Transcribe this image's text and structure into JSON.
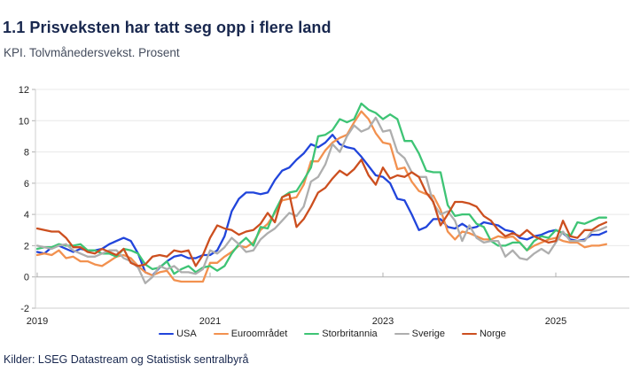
{
  "header": {
    "title": "1.1 Prisveksten har tatt seg opp i flere land",
    "subtitle": "KPI. Tolvmånedersvekst. Prosent"
  },
  "footer": {
    "sources": "Kilder: LSEG Datastream og Statistisk sentralbyrå"
  },
  "colors": {
    "title_text": "#18274e",
    "axis_text": "#1f1f1f",
    "gridline": "#e8e8e8",
    "zero_axis": "#b0b0b0",
    "frame": "#cfcfcf"
  },
  "chart_data": {
    "type": "line",
    "title": "1.1 Prisveksten har tatt seg opp i flere land",
    "subtitle": "KPI. Tolvmånedersvekst. Prosent",
    "x_start": "2019-01",
    "x_end": "2025-08",
    "x_unit": "month",
    "ylim": [
      -2,
      12
    ],
    "yticks": [
      12,
      10,
      8,
      6,
      4,
      2,
      0,
      -2
    ],
    "xticks": [
      2019,
      2021,
      2023,
      2025
    ],
    "grid": "horizontal",
    "legend_position": "bottom",
    "series": [
      {
        "name": "USA",
        "color": "#2145db",
        "values": [
          1.6,
          1.5,
          1.9,
          2.0,
          1.8,
          1.6,
          1.8,
          1.7,
          1.7,
          1.8,
          2.1,
          2.3,
          2.5,
          2.3,
          1.5,
          0.3,
          0.1,
          0.6,
          1.0,
          1.3,
          1.4,
          1.2,
          1.2,
          1.4,
          1.4,
          1.7,
          2.6,
          4.2,
          5.0,
          5.4,
          5.4,
          5.3,
          5.4,
          6.2,
          6.8,
          7.0,
          7.5,
          7.9,
          8.5,
          8.3,
          8.6,
          9.1,
          8.5,
          8.3,
          8.2,
          7.7,
          7.1,
          6.5,
          6.4,
          6.0,
          5.0,
          4.9,
          4.0,
          3.0,
          3.2,
          3.7,
          3.7,
          3.2,
          3.1,
          3.4,
          3.1,
          3.2,
          3.5,
          3.4,
          3.3,
          3.0,
          2.9,
          2.5,
          2.4,
          2.6,
          2.7,
          2.9,
          3.0,
          2.8,
          2.4,
          2.3,
          2.4,
          2.7,
          2.7,
          2.9
        ]
      },
      {
        "name": "Euroområdet",
        "color": "#f2914f",
        "values": [
          1.4,
          1.5,
          1.4,
          1.7,
          1.2,
          1.3,
          1.0,
          1.0,
          0.8,
          0.7,
          1.0,
          1.3,
          1.4,
          1.2,
          0.7,
          0.3,
          0.1,
          0.3,
          0.4,
          -0.2,
          -0.3,
          -0.3,
          -0.3,
          -0.3,
          0.9,
          0.9,
          1.3,
          1.6,
          2.0,
          1.9,
          2.2,
          3.0,
          3.4,
          4.1,
          4.9,
          5.0,
          5.1,
          5.9,
          7.4,
          7.4,
          8.1,
          8.6,
          8.9,
          9.1,
          9.9,
          10.6,
          10.1,
          9.2,
          8.6,
          8.5,
          6.9,
          7.0,
          6.1,
          5.5,
          5.3,
          5.2,
          4.3,
          2.9,
          2.4,
          2.9,
          2.8,
          2.6,
          2.4,
          2.4,
          2.6,
          2.5,
          2.6,
          2.2,
          1.7,
          2.0,
          2.2,
          2.4,
          2.5,
          2.3,
          2.2,
          2.2,
          1.9,
          2.0,
          2.0,
          2.1
        ]
      },
      {
        "name": "Storbritannia",
        "color": "#3ec475",
        "values": [
          1.8,
          1.9,
          1.9,
          2.1,
          2.0,
          2.0,
          2.1,
          1.7,
          1.7,
          1.5,
          1.5,
          1.3,
          1.8,
          1.7,
          1.5,
          0.8,
          0.5,
          0.6,
          1.0,
          0.2,
          0.5,
          0.7,
          0.3,
          0.6,
          0.7,
          0.4,
          0.7,
          1.5,
          2.1,
          2.5,
          2.0,
          3.2,
          3.1,
          4.2,
          5.1,
          5.4,
          5.5,
          6.2,
          7.0,
          9.0,
          9.1,
          9.4,
          10.1,
          9.9,
          10.1,
          11.1,
          10.7,
          10.5,
          10.1,
          10.4,
          10.1,
          8.7,
          8.7,
          7.9,
          6.8,
          6.7,
          6.7,
          4.6,
          3.9,
          4.0,
          4.0,
          3.4,
          3.2,
          2.3,
          2.0,
          2.0,
          2.2,
          2.2,
          1.7,
          2.3,
          2.6,
          2.5,
          3.0,
          2.8,
          2.6,
          3.5,
          3.4,
          3.6,
          3.8,
          3.8
        ]
      },
      {
        "name": "Sverige",
        "color": "#aeaeae",
        "values": [
          2.0,
          1.9,
          1.8,
          2.0,
          2.1,
          1.7,
          1.5,
          1.3,
          1.3,
          1.5,
          1.7,
          1.7,
          1.2,
          1.0,
          0.6,
          -0.4,
          0.0,
          0.7,
          0.5,
          0.7,
          0.3,
          0.3,
          0.2,
          0.5,
          1.7,
          1.5,
          1.9,
          2.5,
          2.1,
          1.6,
          1.7,
          2.4,
          2.8,
          3.1,
          3.6,
          4.1,
          3.9,
          4.5,
          6.1,
          6.4,
          7.2,
          8.5,
          8.0,
          9.0,
          9.7,
          9.3,
          9.5,
          10.2,
          9.3,
          9.4,
          8.0,
          7.6,
          6.7,
          6.4,
          6.4,
          4.7,
          4.0,
          4.2,
          3.6,
          2.3,
          3.3,
          2.5,
          2.2,
          2.3,
          2.3,
          1.3,
          1.7,
          1.2,
          1.1,
          1.5,
          1.8,
          1.5,
          2.2,
          2.9,
          2.3,
          2.3,
          2.3,
          2.9,
          3.0,
          3.2
        ]
      },
      {
        "name": "Norge",
        "color": "#cc4f1f",
        "values": [
          3.1,
          3.0,
          2.9,
          2.9,
          2.5,
          1.9,
          1.9,
          1.6,
          1.5,
          1.8,
          1.6,
          1.4,
          1.8,
          0.9,
          0.7,
          0.8,
          1.3,
          1.4,
          1.3,
          1.7,
          1.6,
          1.7,
          0.7,
          1.4,
          2.5,
          3.3,
          3.1,
          3.0,
          2.7,
          2.9,
          3.0,
          3.4,
          4.1,
          3.5,
          5.1,
          5.3,
          3.2,
          3.7,
          4.5,
          5.4,
          5.7,
          6.3,
          6.8,
          6.5,
          6.9,
          7.5,
          6.5,
          5.9,
          7.0,
          6.3,
          6.5,
          6.4,
          6.7,
          6.4,
          5.4,
          4.8,
          3.3,
          4.0,
          4.8,
          4.8,
          4.7,
          4.5,
          3.9,
          3.6,
          3.0,
          2.6,
          2.8,
          2.6,
          3.0,
          2.6,
          2.4,
          2.2,
          2.3,
          3.6,
          2.6,
          2.5,
          3.0,
          3.0,
          3.3,
          3.5
        ]
      }
    ]
  }
}
